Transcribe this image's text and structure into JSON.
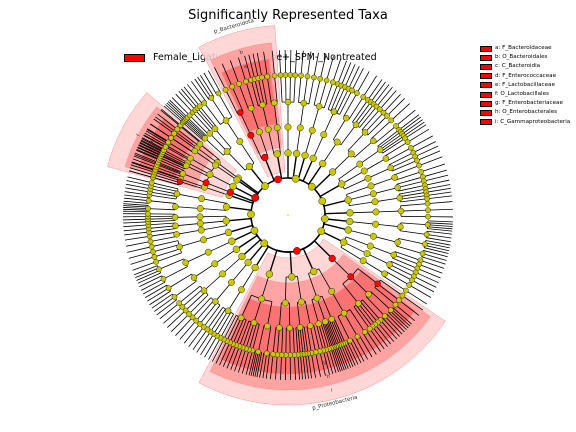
{
  "colors": {
    "enriched": "#ff0000",
    "nonsig": "#c8c800",
    "edge": "#000000"
  },
  "chart_data": {
    "type": "cladogram",
    "title": "Significantly Represented Taxa",
    "group": {
      "name": "Female_Ligature_Genotype+_SPM-_Nontreated",
      "color": "#ff0000"
    },
    "highlighted_clades": [
      {
        "key": "a",
        "name": "a: F_Bacteroidaceae",
        "level": "family",
        "arc_label": "a",
        "start_deg": -28,
        "end_deg": -4
      },
      {
        "key": "b",
        "name": "b: O_Bacteroidales",
        "level": "order",
        "arc_label": "b",
        "start_deg": -28,
        "end_deg": -4
      },
      {
        "key": "c",
        "name": "c: C_Bacteroidia",
        "level": "class",
        "arc_label": "",
        "start_deg": -28,
        "end_deg": -4
      },
      {
        "key": "d",
        "name": "d: F_Enterococcaceae",
        "level": "family",
        "arc_label": "d",
        "start_deg": -75,
        "end_deg": -49
      },
      {
        "key": "e",
        "name": "e: F_Lactobacillaceae",
        "level": "family",
        "arc_label": "e",
        "start_deg": -75,
        "end_deg": -49
      },
      {
        "key": "f",
        "name": "f: O_Lactobacillales",
        "level": "order",
        "arc_label": "f",
        "start_deg": -75,
        "end_deg": -49
      },
      {
        "key": "g",
        "name": "g: F_Enterobacteriaceae",
        "level": "family",
        "arc_label": "g",
        "start_deg": 124,
        "end_deg": 208
      },
      {
        "key": "h",
        "name": "h: O_Enterobacterales",
        "level": "order",
        "arc_label": "h",
        "start_deg": 124,
        "end_deg": 208
      },
      {
        "key": "i",
        "name": "i: C_Gammaproteobacteria",
        "level": "class",
        "arc_label": "i",
        "start_deg": 124,
        "end_deg": 208
      }
    ],
    "phyla": [
      {
        "name": "p_Bacteroidota",
        "enriched": true,
        "start_deg": -28,
        "end_deg": -4
      },
      {
        "name": "p_Proteobacteria",
        "enriched": true,
        "start_deg": 124,
        "end_deg": 208
      }
    ]
  }
}
